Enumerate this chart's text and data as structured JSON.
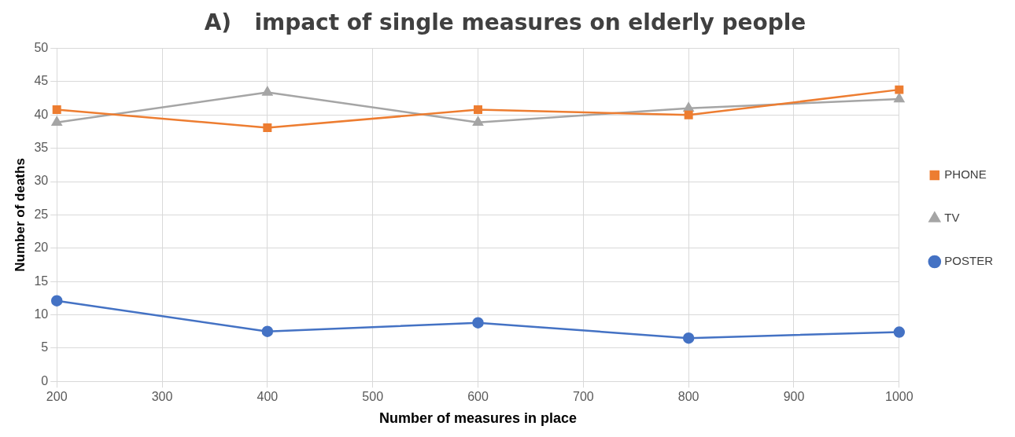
{
  "chart_data": {
    "type": "line",
    "title": "A)   impact of single measures on elderly people",
    "xlabel": "Number of measures in place",
    "ylabel": "Number of deaths",
    "x": [
      200,
      400,
      600,
      800,
      1000
    ],
    "series": [
      {
        "name": "PHONE",
        "color": "#ed7d31",
        "marker": "square",
        "values": [
          40.8,
          38.1,
          40.8,
          40,
          43.8
        ]
      },
      {
        "name": "TV",
        "color": "#a5a5a5",
        "marker": "triangle",
        "values": [
          38.9,
          43.4,
          38.9,
          41,
          42.4
        ]
      },
      {
        "name": "POSTER",
        "color": "#4472c4",
        "marker": "circle",
        "values": [
          12.1,
          7.5,
          8.8,
          6.5,
          7.4
        ]
      }
    ],
    "xlim": [
      200,
      1000
    ],
    "xticks": [
      200,
      300,
      400,
      500,
      600,
      700,
      800,
      900,
      1000
    ],
    "ylim": [
      0,
      50
    ],
    "yticks": [
      0,
      5,
      10,
      15,
      20,
      25,
      30,
      35,
      40,
      45,
      50
    ],
    "grid": true,
    "legend": "right",
    "line_style": "solid"
  }
}
